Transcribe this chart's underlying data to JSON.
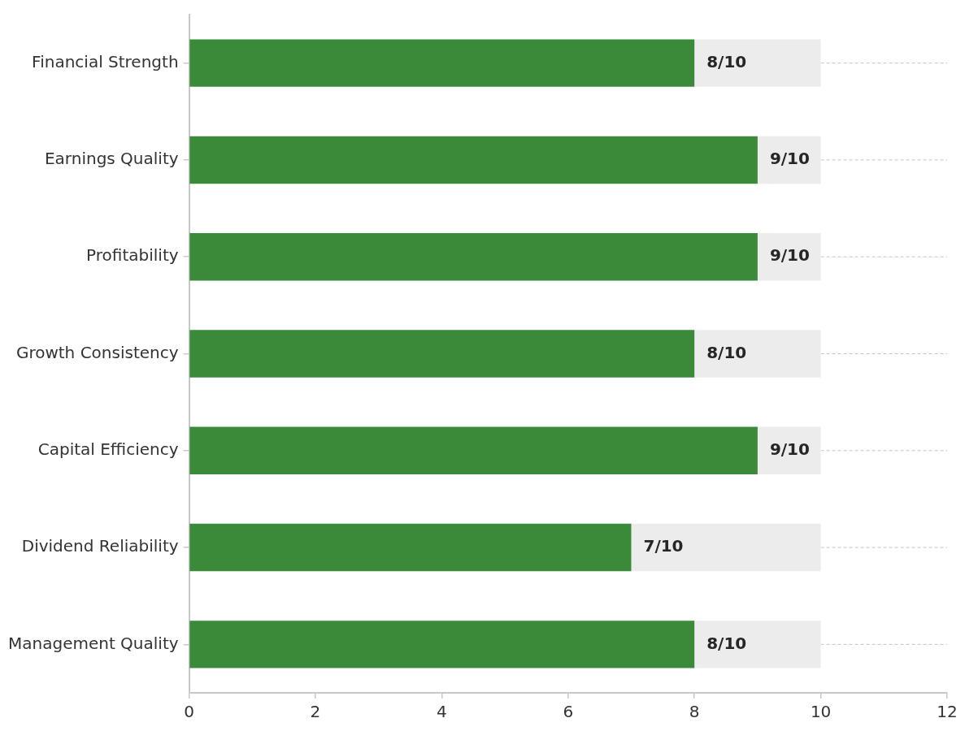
{
  "chart_data": {
    "type": "bar",
    "orientation": "horizontal",
    "stacked": true,
    "categories": [
      "Financial Strength",
      "Earnings Quality",
      "Profitability",
      "Growth Consistency",
      "Capital Efficiency",
      "Dividend Reliability",
      "Management Quality"
    ],
    "series": [
      {
        "color": "#3a8a3a",
        "values": [
          8,
          9,
          9,
          8,
          9,
          7,
          8
        ]
      },
      {
        "color": "#ececec",
        "values": [
          2,
          1,
          1,
          2,
          1,
          3,
          2
        ]
      }
    ],
    "annotations": [
      {
        "text": "8/10",
        "x": 8,
        "y": "Financial Strength"
      },
      {
        "text": "9/10",
        "x": 9,
        "y": "Earnings Quality"
      },
      {
        "text": "9/10",
        "x": 9,
        "y": "Profitability"
      },
      {
        "text": "8/10",
        "x": 8,
        "y": "Growth Consistency"
      },
      {
        "text": "9/10",
        "x": 9,
        "y": "Capital Efficiency"
      },
      {
        "text": "7/10",
        "x": 7,
        "y": "Dividend Reliability"
      },
      {
        "text": "8/10",
        "x": 8,
        "y": "Management Quality"
      }
    ],
    "xlim": [
      0,
      12
    ],
    "xticks": [
      0,
      2,
      4,
      6,
      8,
      10,
      12
    ],
    "grid": "y",
    "line_style": "dashed",
    "legend": false
  }
}
